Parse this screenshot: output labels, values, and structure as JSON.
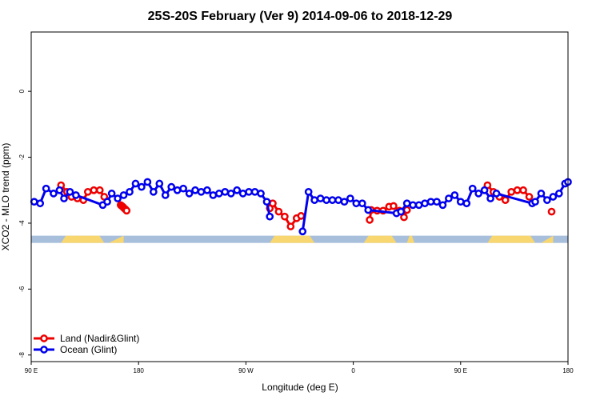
{
  "chart_data": {
    "type": "line",
    "title": "25S-20S February (Ver 9)   2014-09-06 to 2018-12-29",
    "xlabel": "Longitude (deg E)",
    "ylabel": "XCO2 - MLO trend (ppm)",
    "xlim": [
      0,
      360
    ],
    "ylim": [
      -8.2,
      1.8
    ],
    "x_ticks": [
      {
        "value": 0,
        "label": "90 E"
      },
      {
        "value": 72,
        "label": "180"
      },
      {
        "value": 144,
        "label": "90 W"
      },
      {
        "value": 216,
        "label": "0"
      },
      {
        "value": 288,
        "label": "90 E"
      },
      {
        "value": 360,
        "label": "180"
      }
    ],
    "y_ticks": [
      {
        "value": 0,
        "label": "0"
      },
      {
        "value": -2,
        "label": "-2"
      },
      {
        "value": -4,
        "label": "-4"
      },
      {
        "value": -6,
        "label": "-6"
      },
      {
        "value": -8,
        "label": "-8"
      }
    ],
    "landmask": {
      "y_range": [
        -4.6,
        -4.38
      ],
      "ocean_color": "#a8bfdc",
      "land_color": "#f8d670",
      "land_segments": [
        {
          "x": [
            20,
            49
          ],
          "kind": "box"
        },
        {
          "x": [
            52,
            62
          ],
          "kind": "tri"
        },
        {
          "x": [
            160,
            190
          ],
          "kind": "box"
        },
        {
          "x": [
            223,
            245
          ],
          "kind": "box"
        },
        {
          "x": [
            252,
            257
          ],
          "kind": "box"
        },
        {
          "x": [
            306,
            338
          ],
          "kind": "box"
        },
        {
          "x": [
            342,
            350
          ],
          "kind": "tri"
        }
      ]
    },
    "legend": {
      "position": "bottom-left",
      "entries": [
        "Land (Nadir&Glint)",
        "Ocean (Glint)"
      ]
    },
    "series": [
      {
        "name": "Land (Nadir&Glint)",
        "color": "#ee0000",
        "segments": [
          [
            [
              20,
              -2.85
            ],
            [
              24,
              -3.05
            ],
            [
              27,
              -3.2
            ],
            [
              31,
              -3.25
            ],
            [
              35,
              -3.3
            ],
            [
              38,
              -3.05
            ],
            [
              42,
              -3.0
            ],
            [
              46,
              -3.0
            ],
            [
              49,
              -3.2
            ]
          ],
          [
            [
              60,
              -3.45
            ],
            [
              60.8,
              -3.48
            ],
            [
              61.6,
              -3.51
            ],
            [
              62.4,
              -3.55
            ],
            [
              63.2,
              -3.58
            ],
            [
              64,
              -3.62
            ]
          ],
          [
            [
              160,
              -3.55
            ],
            [
              162,
              -3.4
            ],
            [
              166,
              -3.65
            ],
            [
              170,
              -3.8
            ],
            [
              174,
              -4.1
            ],
            [
              178,
              -3.85
            ],
            [
              181,
              -3.78
            ]
          ],
          [
            [
              227,
              -3.9
            ],
            [
              228,
              -3.6
            ],
            [
              232,
              -3.62
            ],
            [
              236,
              -3.62
            ],
            [
              240,
              -3.5
            ],
            [
              243,
              -3.48
            ],
            [
              247,
              -3.62
            ],
            [
              250,
              -3.82
            ],
            [
              252,
              -3.6
            ]
          ],
          [
            [
              306,
              -2.85
            ],
            [
              310,
              -3.05
            ],
            [
              314,
              -3.2
            ],
            [
              318,
              -3.3
            ],
            [
              322,
              -3.05
            ],
            [
              326,
              -3.0
            ],
            [
              330,
              -3.0
            ],
            [
              334,
              -3.2
            ]
          ],
          [
            [
              349,
              -3.65
            ]
          ]
        ]
      },
      {
        "name": "Ocean (Glint)",
        "color": "#0000ee",
        "segments": [
          [
            [
              2,
              -3.35
            ],
            [
              6,
              -3.4
            ],
            [
              10,
              -2.95
            ],
            [
              15,
              -3.1
            ],
            [
              19,
              -3.0
            ],
            [
              22,
              -3.25
            ],
            [
              26,
              -3.05
            ],
            [
              30,
              -3.15
            ],
            [
              48,
              -3.45
            ],
            [
              51,
              -3.35
            ],
            [
              54,
              -3.1
            ],
            [
              58,
              -3.25
            ],
            [
              62,
              -3.15
            ],
            [
              66,
              -3.05
            ],
            [
              70,
              -2.8
            ],
            [
              74,
              -2.9
            ],
            [
              78,
              -2.75
            ],
            [
              82,
              -3.05
            ],
            [
              86,
              -2.8
            ],
            [
              90,
              -3.15
            ],
            [
              94,
              -2.9
            ],
            [
              98,
              -3.0
            ],
            [
              102,
              -2.95
            ],
            [
              106,
              -3.1
            ],
            [
              110,
              -3.0
            ],
            [
              114,
              -3.05
            ],
            [
              118,
              -3.0
            ],
            [
              122,
              -3.15
            ],
            [
              126,
              -3.1
            ],
            [
              130,
              -3.05
            ],
            [
              134,
              -3.1
            ],
            [
              138,
              -3.0
            ],
            [
              142,
              -3.1
            ],
            [
              146,
              -3.05
            ],
            [
              150,
              -3.05
            ],
            [
              154,
              -3.1
            ],
            [
              158,
              -3.35
            ],
            [
              160,
              -3.8
            ]
          ],
          [
            [
              182,
              -4.25
            ],
            [
              186,
              -3.05
            ],
            [
              190,
              -3.3
            ],
            [
              194,
              -3.25
            ],
            [
              198,
              -3.3
            ],
            [
              202,
              -3.3
            ],
            [
              206,
              -3.3
            ],
            [
              210,
              -3.35
            ],
            [
              214,
              -3.25
            ],
            [
              218,
              -3.4
            ],
            [
              222,
              -3.4
            ],
            [
              226,
              -3.6
            ],
            [
              245,
              -3.7
            ],
            [
              248,
              -3.65
            ],
            [
              252,
              -3.4
            ],
            [
              256,
              -3.45
            ],
            [
              260,
              -3.45
            ],
            [
              264,
              -3.4
            ],
            [
              268,
              -3.35
            ],
            [
              272,
              -3.35
            ],
            [
              276,
              -3.45
            ],
            [
              280,
              -3.25
            ],
            [
              284,
              -3.15
            ],
            [
              288,
              -3.35
            ],
            [
              292,
              -3.4
            ],
            [
              296,
              -2.95
            ],
            [
              300,
              -3.1
            ],
            [
              304,
              -3.0
            ],
            [
              308,
              -3.25
            ],
            [
              312,
              -3.1
            ],
            [
              336,
              -3.4
            ],
            [
              338,
              -3.35
            ],
            [
              342,
              -3.1
            ],
            [
              346,
              -3.3
            ],
            [
              350,
              -3.2
            ],
            [
              354,
              -3.1
            ],
            [
              358,
              -2.8
            ],
            [
              360,
              -2.75
            ]
          ]
        ]
      }
    ]
  }
}
